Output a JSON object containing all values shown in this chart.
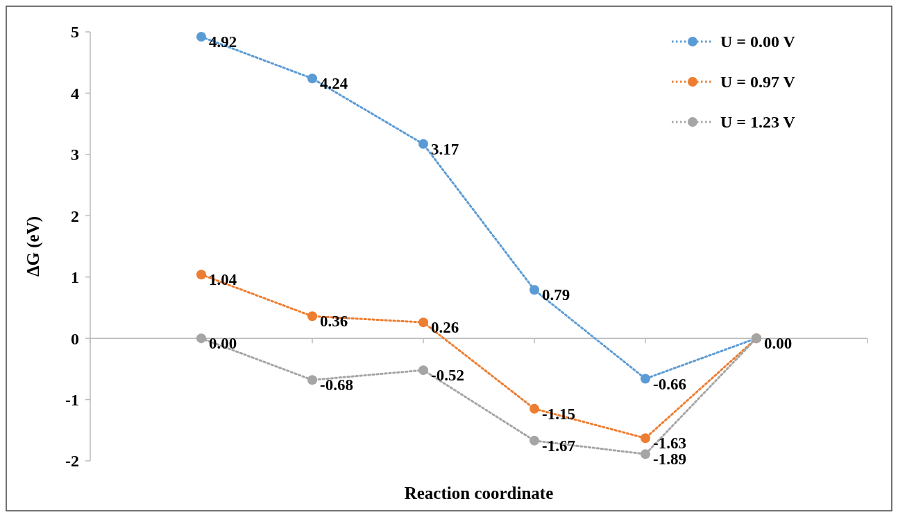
{
  "chart_data": {
    "type": "line",
    "xlabel": "Reaction coordinate",
    "ylabel": "ΔG (eV)",
    "categories": [
      null,
      null,
      null,
      null,
      null,
      null
    ],
    "ylim": [
      -2,
      5
    ],
    "yticks": [
      -2,
      -1,
      0,
      1,
      2,
      3,
      4,
      5
    ],
    "legend": "top right",
    "marker": "circle",
    "line_style": "dotted",
    "series": [
      {
        "name": "U = 0.00 V",
        "color": "#5b9bd5",
        "values": [
          4.92,
          4.24,
          3.17,
          0.79,
          -0.66,
          0.0
        ],
        "value_labels": [
          "4.92",
          "4.24",
          "3.17",
          "0.79",
          "-0.66",
          "0.00"
        ]
      },
      {
        "name": "U = 0.97 V",
        "color": "#ed7d31",
        "values": [
          1.04,
          0.36,
          0.26,
          -1.15,
          -1.63,
          0.0
        ],
        "value_labels": [
          "1.04",
          "0.36",
          "0.26",
          "-1.15",
          "-1.63",
          null
        ]
      },
      {
        "name": "U = 1.23 V",
        "color": "#a5a5a5",
        "values": [
          0.0,
          -0.68,
          -0.52,
          -1.67,
          -1.89,
          0.0
        ],
        "value_labels": [
          "0.00",
          "-0.68",
          "-0.52",
          "-1.67",
          "-1.89",
          null
        ]
      }
    ]
  }
}
